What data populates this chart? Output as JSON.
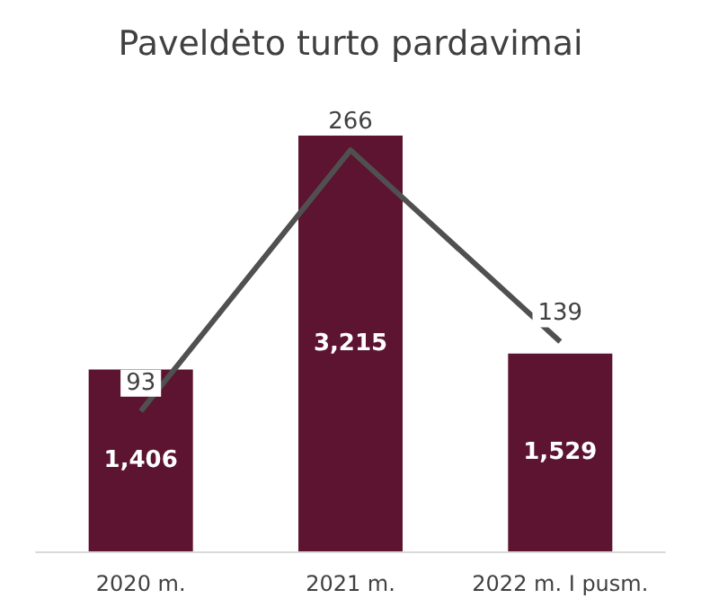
{
  "chart_data": {
    "type": "bar",
    "title": "Paveldėto turto pardavimai",
    "categories": [
      "2020 m.",
      "2021 m.",
      "2022 m. I pusm."
    ],
    "series": [
      {
        "color": "#5c1430",
        "values": [
          1406,
          3215,
          1529
        ],
        "value_labels": [
          "1,406",
          "3,215",
          "1,529"
        ]
      },
      {
        "type": "line",
        "axis": "y2",
        "color": "#505050",
        "values": [
          93,
          266,
          139
        ]
      }
    ],
    "tick_labels": "x",
    "data_labels": true
  }
}
